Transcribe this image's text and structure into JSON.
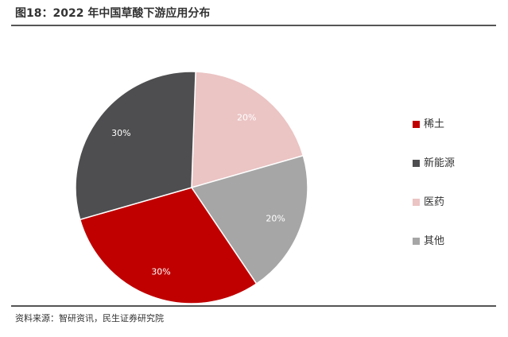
{
  "header": {
    "title": "图18：2022 年中国草酸下游应用分布"
  },
  "footer": {
    "source": "资料来源：智研资讯，民生证券研究院"
  },
  "chart_data": {
    "type": "pie",
    "title": "图18：2022 年中国草酸下游应用分布",
    "legend_position": "right",
    "slices": [
      {
        "name": "医药",
        "value": 20,
        "label": "20%",
        "color": "#ebc4c4"
      },
      {
        "name": "其他",
        "value": 20,
        "label": "20%",
        "color": "#a6a6a6"
      },
      {
        "name": "稀土",
        "value": 30,
        "label": "30%",
        "color": "#c00000"
      },
      {
        "name": "新能源",
        "value": 30,
        "label": "30%",
        "color": "#4e4e50"
      }
    ],
    "legend_order": [
      "稀土",
      "新能源",
      "医药",
      "其他"
    ]
  }
}
